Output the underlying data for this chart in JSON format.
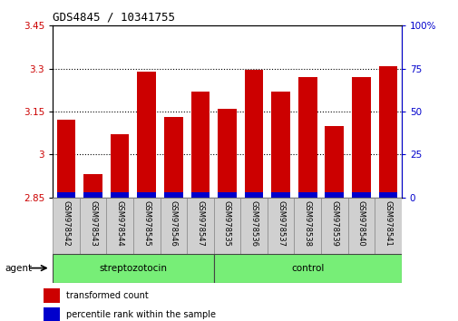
{
  "title": "GDS4845 / 10341755",
  "categories": [
    "GSM978542",
    "GSM978543",
    "GSM978544",
    "GSM978545",
    "GSM978546",
    "GSM978547",
    "GSM978535",
    "GSM978536",
    "GSM978537",
    "GSM978538",
    "GSM978539",
    "GSM978540",
    "GSM978541"
  ],
  "bar_values": [
    3.12,
    2.93,
    3.07,
    3.29,
    3.13,
    3.22,
    3.16,
    3.295,
    3.22,
    3.27,
    3.1,
    3.27,
    3.31
  ],
  "percentile_values": [
    1.0,
    1.0,
    1.0,
    1.0,
    1.0,
    1.0,
    1.0,
    1.0,
    1.0,
    1.0,
    1.0,
    1.0,
    1.0
  ],
  "bar_color": "#cc0000",
  "percentile_color": "#0000cc",
  "ymin": 2.85,
  "ymax": 3.45,
  "yticks": [
    2.85,
    3.0,
    3.15,
    3.3,
    3.45
  ],
  "ytick_labels": [
    "2.85",
    "3",
    "3.15",
    "3.3",
    "3.45"
  ],
  "right_yticks": [
    0,
    25,
    50,
    75,
    100
  ],
  "right_ytick_labels": [
    "0",
    "25",
    "50",
    "75",
    "100%"
  ],
  "group1_label": "streptozotocin",
  "group2_label": "control",
  "group1_count": 6,
  "group2_count": 7,
  "agent_label": "agent",
  "legend1": "transformed count",
  "legend2": "percentile rank within the sample",
  "background_color": "#ffffff",
  "plot_bg_color": "#ffffff",
  "tick_area_color": "#d0d0d0",
  "group_bar_color": "#77ee77",
  "bar_width": 0.7
}
